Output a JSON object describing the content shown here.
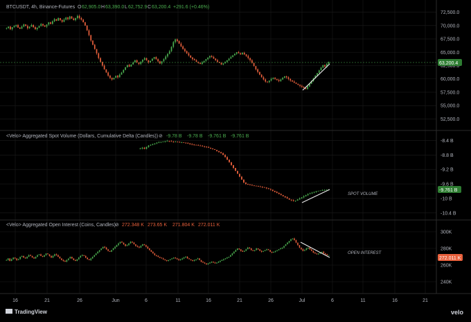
{
  "colors": {
    "up": "#4caf50",
    "down": "#e8603c",
    "line": "#e8e8e8",
    "grid": "#1c1c1c",
    "divider": "#2a2a2a",
    "text": "#b2b5be",
    "last_price_bg": "#2e7d32",
    "last_oi_bg": "#e8603c"
  },
  "pane1": {
    "symbol": "BTCUSDT, 4h, Binance-Futures",
    "o_label": "O",
    "o_val": "62,905.0",
    "h_label": "H",
    "h_val": "63,390.0",
    "l_label": "L",
    "l_val": "62,752.9",
    "c_label": "C",
    "c_val": "63,200.4",
    "change": "+291.6 (+0.46%)",
    "last_label": "63,200.4",
    "ticks": [
      "72,500.0",
      "70,000.0",
      "67,500.0",
      "65,000.0",
      "62,500.0",
      "60,000.0",
      "57,500.0",
      "55,000.0",
      "52,500.0"
    ]
  },
  "pane2": {
    "title": "<Velo> Aggregated Spot Volume (Dollars, Cumulative Delta (Candles))",
    "vals": [
      "-9.78 B",
      "-9.78 B",
      "-9.761 B",
      "-9.761 B"
    ],
    "last_label": "-9.761 B",
    "annotation": "SPOT VOLUME",
    "ticks": [
      "-8.4 B",
      "-8.8 B",
      "-9.2 B",
      "-9.6 B",
      "-10 B",
      "-10.4 B"
    ]
  },
  "pane3": {
    "title": "<Velo> Aggregated Open Interest (Coins, Candles)",
    "vals": [
      "272.348 K",
      "273.65 K",
      "271.804 K",
      "272.011 K"
    ],
    "last_label": "272.011 K",
    "annotation": "OPEN INTEREST",
    "ticks": [
      "300K",
      "280K",
      "260K",
      "240K"
    ]
  },
  "x_ticks": [
    "16",
    "21",
    "26",
    "Jun",
    "6",
    "11",
    "16",
    "21",
    "26",
    "Jul",
    "6",
    "11",
    "16",
    "21"
  ],
  "footer": {
    "brand": "TradingView",
    "logo": "velo"
  },
  "chart_data": [
    {
      "type": "candlestick",
      "title": "BTCUSDT, 4h, Binance-Futures",
      "ylim": [
        51000,
        74000
      ],
      "series": [
        {
          "values": [
            69500,
            69800,
            69300,
            69700,
            69900,
            70100,
            69600,
            69400,
            69800,
            70200,
            69900,
            69500,
            69800,
            70100,
            69700,
            69300,
            69600,
            69900,
            70300,
            70000,
            69800,
            70200,
            70600,
            70300,
            70800,
            71200,
            70900,
            71400,
            71000,
            70700,
            71100,
            71500,
            71200,
            71700,
            71300,
            71000,
            71400,
            71800,
            71400,
            71100,
            70600,
            70000,
            69100,
            68200,
            67200,
            66400,
            65600,
            64800,
            63900,
            63200,
            62500,
            61800,
            61200,
            60600,
            60200,
            59900,
            60200,
            60600,
            60300,
            60800,
            61200,
            61700,
            62200,
            62600,
            62300,
            62700,
            63100,
            63500,
            63100,
            62800,
            63200,
            63600,
            63900,
            63500,
            63100,
            63400,
            63800,
            64100,
            63700,
            63300,
            62900,
            63300,
            63700,
            64200,
            64700,
            65200,
            66000,
            66900,
            67400,
            67100,
            66600,
            66100,
            65600,
            65200,
            64800,
            64400,
            64000,
            63700,
            63500,
            63200,
            63000,
            62800,
            63100,
            63400,
            63700,
            64000,
            64300,
            64100,
            63800,
            63500,
            63200,
            63000,
            62700,
            62900,
            63200,
            63500,
            63800,
            64100,
            64400,
            64700,
            65000,
            64800,
            64600,
            64900,
            64600,
            64300,
            63900,
            63500,
            63000,
            62400,
            61800,
            61300,
            60800,
            60300,
            59900,
            59500,
            59400,
            59700,
            60000,
            60200,
            60000,
            59800,
            59600,
            59900,
            60200,
            60500,
            60300,
            60000,
            59700,
            59500,
            59300,
            59100,
            58900,
            58700,
            58500,
            58300,
            58100,
            58600,
            59100,
            59600,
            60100,
            60600,
            61100,
            61600,
            62100,
            62600,
            62300,
            62800,
            63200
          ]
        }
      ]
    },
    {
      "type": "candlestick",
      "title": "<Velo> Aggregated Spot Volume (Dollars, Cumulative Delta (Candles))",
      "ylim": [
        -10.5,
        -8.2
      ],
      "series": [
        {
          "values": [
            -8.62,
            -8.6,
            -8.63,
            -8.58,
            -8.54,
            -8.52,
            -8.5,
            -8.48,
            -8.46,
            -8.45,
            -8.44,
            -8.43,
            -8.42,
            -8.41,
            -8.42,
            -8.43,
            -8.44,
            -8.43,
            -8.44,
            -8.45,
            -8.45,
            -8.46,
            -8.47,
            -8.48,
            -8.5,
            -8.51,
            -8.52,
            -8.53,
            -8.54,
            -8.55,
            -8.56,
            -8.57,
            -8.58,
            -8.6,
            -8.62,
            -8.64,
            -8.66,
            -8.69,
            -8.72,
            -8.75,
            -8.8,
            -8.86,
            -8.93,
            -9.0,
            -9.08,
            -9.16,
            -9.24,
            -9.32,
            -9.4,
            -9.48,
            -9.56,
            -9.6,
            -9.62,
            -9.63,
            -9.64,
            -9.65,
            -9.66,
            -9.67,
            -9.68,
            -9.69,
            -9.7,
            -9.72,
            -9.74,
            -9.76,
            -9.79,
            -9.82,
            -9.85,
            -9.88,
            -9.91,
            -9.94,
            -9.97,
            -10.0,
            -10.03,
            -10.05,
            -10.07,
            -10.06,
            -10.03,
            -10.0,
            -9.97,
            -9.94,
            -9.91,
            -9.88,
            -9.86,
            -9.84,
            -9.82,
            -9.8,
            -9.79,
            -9.78,
            -9.77,
            -9.77,
            -9.76,
            -9.76
          ]
        }
      ]
    },
    {
      "type": "candlestick",
      "title": "<Velo> Aggregated Open Interest (Coins, Candles)",
      "ylim": [
        230,
        310
      ],
      "series": [
        {
          "values": [
            266,
            268,
            265,
            267,
            269,
            268,
            266,
            267,
            270,
            271,
            269,
            268,
            270,
            272,
            271,
            269,
            268,
            270,
            272,
            273,
            271,
            270,
            272,
            274,
            273,
            271,
            269,
            271,
            273,
            272,
            270,
            268,
            266,
            265,
            264,
            266,
            268,
            270,
            268,
            266,
            265,
            267,
            269,
            271,
            272,
            271,
            269,
            267,
            266,
            268,
            270,
            272,
            274,
            276,
            278,
            280,
            282,
            281,
            279,
            277,
            276,
            278,
            280,
            282,
            284,
            286,
            288,
            287,
            285,
            283,
            284,
            286,
            288,
            287,
            285,
            283,
            282,
            281,
            283,
            285,
            284,
            282,
            280,
            278,
            276,
            274,
            272,
            271,
            270,
            269,
            268,
            267,
            266,
            265,
            266,
            267,
            268,
            269,
            268,
            267,
            266,
            267,
            268,
            269,
            270,
            268,
            267,
            266,
            265,
            266,
            267,
            268,
            266,
            264,
            263,
            262,
            261,
            262,
            263,
            264,
            263,
            262,
            263,
            264,
            265,
            266,
            267,
            268,
            269,
            270,
            272,
            274,
            276,
            278,
            280,
            279,
            277,
            276,
            277,
            279,
            281,
            280,
            278,
            277,
            278,
            280,
            279,
            277,
            276,
            277,
            278,
            279,
            278,
            276,
            275,
            276,
            277,
            278,
            279,
            280,
            281,
            283,
            285,
            287,
            289,
            291,
            292,
            290,
            287,
            284,
            281,
            279,
            277,
            278,
            280,
            281,
            279,
            277,
            275,
            274,
            273,
            274,
            275,
            276,
            274,
            273,
            272,
            272
          ]
        }
      ]
    }
  ]
}
